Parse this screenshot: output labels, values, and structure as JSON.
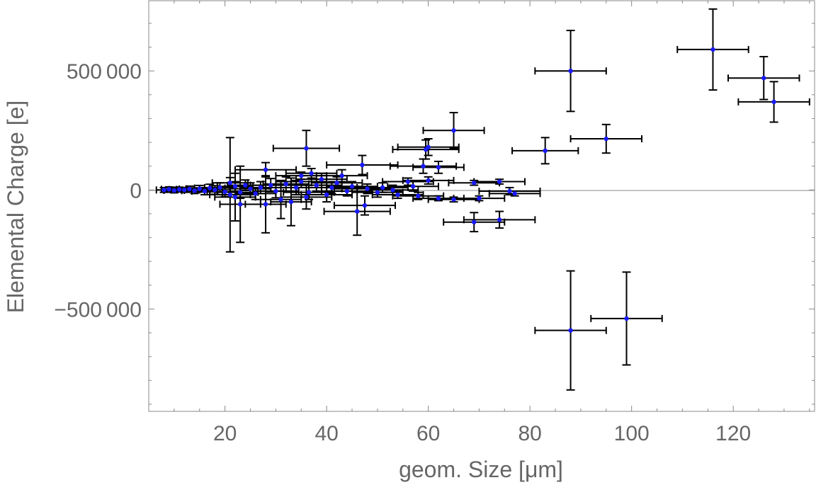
{
  "chart_data": {
    "type": "scatter",
    "title": "",
    "xlabel": "geom. Size [μm]",
    "ylabel": "Elemental Charge [e]",
    "xlim": [
      5,
      136
    ],
    "ylim": [
      -930000,
      795000
    ],
    "xticks": [
      20,
      40,
      60,
      80,
      100,
      120
    ],
    "xtick_labels": [
      "20",
      "40",
      "60",
      "80",
      "100",
      "120"
    ],
    "yticks": [
      -500000,
      0,
      500000
    ],
    "ytick_labels": [
      "−500 000",
      "0",
      "500 000"
    ],
    "grid": false,
    "zero_line": true,
    "error_bars": true,
    "colors": {
      "point": "#1a1aff",
      "error_bar": "#000000",
      "frame": "#888888",
      "zero_line": "#888888"
    },
    "points": [
      {
        "x": 88,
        "y": 500000,
        "xerr": 7,
        "yerr": 170000
      },
      {
        "x": 116,
        "y": 590000,
        "xerr": 7,
        "yerr": 170000
      },
      {
        "x": 126,
        "y": 470000,
        "xerr": 7,
        "yerr": 90000
      },
      {
        "x": 128,
        "y": 370000,
        "xerr": 7,
        "yerr": 85000
      },
      {
        "x": 95,
        "y": 215000,
        "xerr": 7,
        "yerr": 60000
      },
      {
        "x": 83,
        "y": 165000,
        "xerr": 6.5,
        "yerr": 55000
      },
      {
        "x": 65,
        "y": 250000,
        "xerr": 6,
        "yerr": 75000
      },
      {
        "x": 36,
        "y": 175000,
        "xerr": 6.5,
        "yerr": 75000
      },
      {
        "x": 59.5,
        "y": 170000,
        "xerr": 6.5,
        "yerr": 40000
      },
      {
        "x": 60,
        "y": 180000,
        "xerr": 6,
        "yerr": 35000
      },
      {
        "x": 47,
        "y": 105000,
        "xerr": 7,
        "yerr": 40000
      },
      {
        "x": 59,
        "y": 100000,
        "xerr": 6.5,
        "yerr": 30000
      },
      {
        "x": 62,
        "y": 95000,
        "xerr": 5,
        "yerr": 25000
      },
      {
        "x": 28,
        "y": 85000,
        "xerr": 6,
        "yerr": 30000
      },
      {
        "x": 43,
        "y": 60000,
        "xerr": 5,
        "yerr": 25000
      },
      {
        "x": 37,
        "y": 70000,
        "xerr": 5,
        "yerr": 20000
      },
      {
        "x": 35,
        "y": 60000,
        "xerr": 5,
        "yerr": 15000
      },
      {
        "x": 56,
        "y": 35000,
        "xerr": 5,
        "yerr": 15000
      },
      {
        "x": 60,
        "y": 40000,
        "xerr": 5,
        "yerr": 15000
      },
      {
        "x": 74,
        "y": 35000,
        "xerr": 5,
        "yerr": 10000
      },
      {
        "x": 69,
        "y": 30000,
        "xerr": 5,
        "yerr": 10000
      },
      {
        "x": 88,
        "y": -590000,
        "xerr": 7,
        "yerr": 250000
      },
      {
        "x": 99,
        "y": -540000,
        "xerr": 7,
        "yerr": 195000
      },
      {
        "x": 69,
        "y": -135000,
        "xerr": 6,
        "yerr": 40000
      },
      {
        "x": 74,
        "y": -125000,
        "xerr": 7,
        "yerr": 35000
      },
      {
        "x": 46,
        "y": -90000,
        "xerr": 6.5,
        "yerr": 100000
      },
      {
        "x": 47.5,
        "y": -65000,
        "xerr": 6,
        "yerr": 40000
      },
      {
        "x": 76,
        "y": -5000,
        "xerr": 6,
        "yerr": 15000
      },
      {
        "x": 77,
        "y": -15000,
        "xerr": 5,
        "yerr": 10000
      },
      {
        "x": 70,
        "y": -35000,
        "xerr": 5,
        "yerr": 10000
      },
      {
        "x": 65,
        "y": -40000,
        "xerr": 5,
        "yerr": 10000
      },
      {
        "x": 62,
        "y": -35000,
        "xerr": 5,
        "yerr": 10000
      },
      {
        "x": 58,
        "y": -25000,
        "xerr": 5,
        "yerr": 15000
      },
      {
        "x": 54,
        "y": -20000,
        "xerr": 5,
        "yerr": 15000
      },
      {
        "x": 21,
        "y": -20000,
        "xerr": 4,
        "yerr": 240000
      },
      {
        "x": 23,
        "y": -60000,
        "xerr": 4,
        "yerr": 160000
      },
      {
        "x": 28,
        "y": -60000,
        "xerr": 4,
        "yerr": 120000
      },
      {
        "x": 31,
        "y": -40000,
        "xerr": 4,
        "yerr": 80000
      },
      {
        "x": 33,
        "y": -50000,
        "xerr": 4,
        "yerr": 100000
      },
      {
        "x": 22,
        "y": -30000,
        "xerr": 4,
        "yerr": 100000
      },
      {
        "x": 36,
        "y": -30000,
        "xerr": 5,
        "yerr": 50000
      },
      {
        "x": 40,
        "y": -20000,
        "xerr": 5,
        "yerr": 30000
      },
      {
        "x": 8,
        "y": 0,
        "xerr": 1.5,
        "yerr": 10000
      },
      {
        "x": 9,
        "y": 3000,
        "xerr": 1.5,
        "yerr": 10000
      },
      {
        "x": 10,
        "y": -2000,
        "xerr": 2,
        "yerr": 10000
      },
      {
        "x": 11,
        "y": 2000,
        "xerr": 2,
        "yerr": 10000
      },
      {
        "x": 12,
        "y": 0,
        "xerr": 2,
        "yerr": 10000
      },
      {
        "x": 13,
        "y": 4000,
        "xerr": 2,
        "yerr": 12000
      },
      {
        "x": 14,
        "y": -3000,
        "xerr": 2.5,
        "yerr": 12000
      },
      {
        "x": 15,
        "y": 5000,
        "xerr": 2.5,
        "yerr": 14000
      },
      {
        "x": 16,
        "y": -5000,
        "xerr": 2.5,
        "yerr": 15000
      },
      {
        "x": 17,
        "y": 8000,
        "xerr": 3,
        "yerr": 16000
      },
      {
        "x": 18,
        "y": 0,
        "xerr": 3,
        "yerr": 18000
      },
      {
        "x": 19,
        "y": 10000,
        "xerr": 3,
        "yerr": 20000
      },
      {
        "x": 20,
        "y": -8000,
        "xerr": 3,
        "yerr": 20000
      },
      {
        "x": 21,
        "y": 30000,
        "xerr": 3.5,
        "yerr": 22000
      },
      {
        "x": 22,
        "y": 15000,
        "xerr": 3.5,
        "yerr": 20000
      },
      {
        "x": 23,
        "y": -10000,
        "xerr": 3.5,
        "yerr": 25000
      },
      {
        "x": 24,
        "y": 20000,
        "xerr": 3.5,
        "yerr": 22000
      },
      {
        "x": 25,
        "y": 5000,
        "xerr": 4,
        "yerr": 25000
      },
      {
        "x": 26,
        "y": -15000,
        "xerr": 4,
        "yerr": 25000
      },
      {
        "x": 27,
        "y": 10000,
        "xerr": 4,
        "yerr": 25000
      },
      {
        "x": 29,
        "y": 20000,
        "xerr": 4,
        "yerr": 28000
      },
      {
        "x": 30,
        "y": -5000,
        "xerr": 4.5,
        "yerr": 28000
      },
      {
        "x": 32,
        "y": 25000,
        "xerr": 4.5,
        "yerr": 30000
      },
      {
        "x": 34,
        "y": 10000,
        "xerr": 5,
        "yerr": 30000
      },
      {
        "x": 35,
        "y": 35000,
        "xerr": 5,
        "yerr": 25000
      },
      {
        "x": 36.5,
        "y": -10000,
        "xerr": 5,
        "yerr": 30000
      },
      {
        "x": 38,
        "y": 20000,
        "xerr": 5,
        "yerr": 25000
      },
      {
        "x": 39,
        "y": 45000,
        "xerr": 5,
        "yerr": 25000
      },
      {
        "x": 41,
        "y": 10000,
        "xerr": 5,
        "yerr": 25000
      },
      {
        "x": 42,
        "y": 30000,
        "xerr": 5,
        "yerr": 25000
      },
      {
        "x": 44,
        "y": -5000,
        "xerr": 5,
        "yerr": 20000
      },
      {
        "x": 45,
        "y": 15000,
        "xerr": 5,
        "yerr": 20000
      },
      {
        "x": 48,
        "y": 5000,
        "xerr": 5,
        "yerr": 20000
      },
      {
        "x": 50,
        "y": -10000,
        "xerr": 5,
        "yerr": 20000
      },
      {
        "x": 51,
        "y": 10000,
        "xerr": 5,
        "yerr": 20000
      },
      {
        "x": 53,
        "y": 0,
        "xerr": 5,
        "yerr": 20000
      },
      {
        "x": 57,
        "y": 15000,
        "xerr": 5,
        "yerr": 20000
      }
    ]
  }
}
